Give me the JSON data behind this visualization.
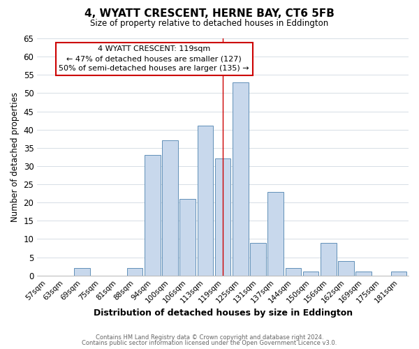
{
  "title": "4, WYATT CRESCENT, HERNE BAY, CT6 5FB",
  "subtitle": "Size of property relative to detached houses in Eddington",
  "xlabel": "Distribution of detached houses by size in Eddington",
  "ylabel": "Number of detached properties",
  "categories": [
    "57sqm",
    "63sqm",
    "69sqm",
    "75sqm",
    "81sqm",
    "88sqm",
    "94sqm",
    "100sqm",
    "106sqm",
    "113sqm",
    "119sqm",
    "125sqm",
    "131sqm",
    "137sqm",
    "144sqm",
    "150sqm",
    "156sqm",
    "162sqm",
    "169sqm",
    "175sqm",
    "181sqm"
  ],
  "values": [
    0,
    0,
    2,
    0,
    0,
    2,
    33,
    37,
    21,
    41,
    32,
    53,
    9,
    23,
    2,
    1,
    9,
    4,
    1,
    0,
    1
  ],
  "bar_color": "#c8d8ec",
  "bar_edge_color": "#6090b8",
  "highlight_index": 10,
  "highlight_line_color": "#cc0000",
  "ylim": [
    0,
    65
  ],
  "yticks": [
    0,
    5,
    10,
    15,
    20,
    25,
    30,
    35,
    40,
    45,
    50,
    55,
    60,
    65
  ],
  "annotation_title": "4 WYATT CRESCENT: 119sqm",
  "annotation_line1": "← 47% of detached houses are smaller (127)",
  "annotation_line2": "50% of semi-detached houses are larger (135) →",
  "annotation_box_color": "#ffffff",
  "annotation_border_color": "#cc0000",
  "footer1": "Contains HM Land Registry data © Crown copyright and database right 2024.",
  "footer2": "Contains public sector information licensed under the Open Government Licence v3.0.",
  "background_color": "#ffffff",
  "grid_color": "#d0d8e0"
}
